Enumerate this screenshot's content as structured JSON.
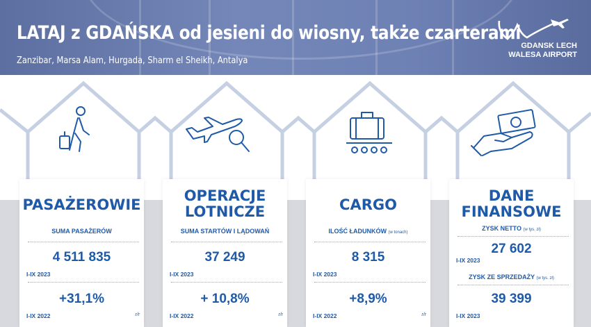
{
  "header": {
    "title": "LATAJ z GDAŃSKA od jesieni do wiosny, także czarterami",
    "subtitle": "Zanzibar, Marsa Alam, Hurgada, Sharm el Sheikh, Antalya"
  },
  "logo": {
    "line1": "GDANSK LECH",
    "line2": "WALESA AIRPORT",
    "icon": "airplane-logo-icon"
  },
  "colors": {
    "brand_blue": "#1f5aa8",
    "hex_line": "#c6d0e3",
    "header_bg": "#6b7eb0"
  },
  "cards": [
    {
      "icon": "traveler-with-suitcase-icon",
      "title": [
        "PASAŻEROWIE"
      ],
      "label": "SUMA PASAŻERÓW",
      "label_unit": "",
      "value": "4 511 835",
      "period_current": "I-IX 2023",
      "change": "+31,1%",
      "period_previous": "I-IX 2022",
      "rr": "r/r"
    },
    {
      "icon": "airplane-search-icon",
      "title": [
        "OPERACJE",
        "LOTNICZE"
      ],
      "label": "SUMA STARTÓW I LĄDOWAŃ",
      "label_unit": "",
      "value": "37 249",
      "period_current": "I-IX 2023",
      "change": "+ 10,8%",
      "period_previous": "I-IX 2022",
      "rr": "r/r"
    },
    {
      "icon": "cargo-baggage-icon",
      "title": [
        "CARGO"
      ],
      "label": "ILOŚĆ ŁADUNKÓW",
      "label_unit": "(w tonach)",
      "value": "8 315",
      "period_current": "I-IX 2023",
      "change": "+8,9%",
      "period_previous": "I-IX 2022",
      "rr": "r/r"
    },
    {
      "icon": "hand-money-icon",
      "title": [
        "DANE",
        "FINANSOWE"
      ],
      "label": "ZYSK NETTO",
      "label_unit": "(w tys. zł)",
      "value": "27 602",
      "period_current": "I-IX 2023",
      "label2": "ZYSK ZE SPRZEDAŻY",
      "label2_unit": "(w tys. zł)",
      "value2": "39 399",
      "period_current2": "I-IX 2023"
    }
  ]
}
